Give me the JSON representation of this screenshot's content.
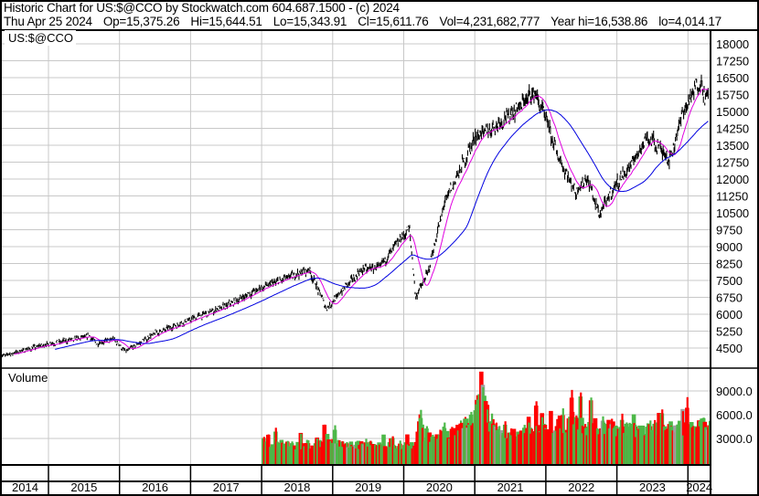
{
  "header": {
    "title": "Historic Chart for US:$@CCO by Stockwatch.com 604.687.1500 - (c) 2024",
    "date": "Thu Apr 25 2024",
    "open": "Op=15,375.26",
    "high": "Hi=15,644.51",
    "low": "Lo=15,343.91",
    "close": "Cl=15,611.76",
    "volume": "Vol=4,231,682,777",
    "year_high": "Year hi=16,538.86",
    "year_low": "lo=4,014.17"
  },
  "colors": {
    "price": "#000000",
    "ma_short": "#e000e0",
    "ma_long": "#0000e0",
    "vol_up": "#4cb848",
    "vol_down": "#ff0000",
    "vol_flat": "#a0a0a0",
    "grid": "#c8c8c8"
  },
  "chart_data": [
    {
      "type": "line",
      "title": "US:$@CCO",
      "y_ticks": [
        "18000",
        "17250",
        "16500",
        "15750",
        "15000",
        "14250",
        "13500",
        "12750",
        "12000",
        "11250",
        "10500",
        "9750",
        "9000",
        "8250",
        "7500",
        "6750",
        "6000",
        "5250",
        "4500"
      ],
      "ylim": [
        4125,
        18750
      ],
      "grid": true,
      "x_ticks": [
        "2014",
        "2015",
        "2016",
        "2017",
        "2018",
        "2019",
        "2020",
        "2021",
        "2022",
        "2023",
        "2024"
      ],
      "series": [
        {
          "points": [
            [
              "2014-05",
              4135
            ],
            [
              "2014-12",
              4620
            ],
            [
              "2015-08",
              5030
            ],
            [
              "2015-09",
              4700
            ],
            [
              "2015-12",
              4900
            ],
            [
              "2016-02",
              4340
            ],
            [
              "2016-07",
              5150
            ],
            [
              "2017-01",
              5760
            ],
            [
              "2017-07",
              6370
            ],
            [
              "2018-01",
              7180
            ],
            [
              "2018-09",
              7990
            ],
            [
              "2018-12",
              6240
            ],
            [
              "2019-03",
              7180
            ],
            [
              "2019-06",
              7990
            ],
            [
              "2019-09",
              8100
            ],
            [
              "2019-12",
              9200
            ],
            [
              "2020-02",
              9810
            ],
            [
              "2020-03",
              6770
            ],
            [
              "2020-05",
              7780
            ],
            [
              "2020-08",
              11030
            ],
            [
              "2020-11",
              12650
            ],
            [
              "2021-01",
              13860
            ],
            [
              "2021-04",
              14270
            ],
            [
              "2021-08",
              15080
            ],
            [
              "2021-11",
              15890
            ],
            [
              "2022-01",
              14680
            ],
            [
              "2022-03",
              13050
            ],
            [
              "2022-06",
              11430
            ],
            [
              "2022-08",
              12040
            ],
            [
              "2022-10",
              10420
            ],
            [
              "2023-01",
              11840
            ],
            [
              "2023-03",
              12450
            ],
            [
              "2023-06",
              13860
            ],
            [
              "2023-08",
              13460
            ],
            [
              "2023-10",
              12850
            ],
            [
              "2023-12",
              14880
            ],
            [
              "2024-02",
              15890
            ],
            [
              "2024-03",
              16380
            ],
            [
              "2024-04",
              15612
            ]
          ]
        }
      ],
      "moving_averages": [
        "short",
        "long"
      ]
    },
    {
      "type": "bar",
      "title": "Volume",
      "y_ticks": [
        "9000.0",
        "6000.0",
        "3000.0"
      ],
      "ylim": [
        0,
        12000
      ],
      "start": "2018-01",
      "monthly_values": [
        2000,
        2200,
        2100,
        2000,
        2100,
        1900,
        2000,
        2100,
        2000,
        2500,
        3000,
        2800,
        2300,
        2100,
        2100,
        2000,
        2200,
        2100,
        2100,
        2200,
        2000,
        2100,
        1900,
        1900,
        2000,
        2200,
        4500,
        3500,
        3200,
        3300,
        3500,
        3800,
        4500,
        4200,
        4500,
        5500,
        8000,
        7000,
        5000,
        4200,
        3800,
        3500,
        3600,
        3300,
        3600,
        4000,
        4300,
        4500,
        5000,
        4800,
        4800,
        4500,
        5000,
        4700,
        4400,
        4200,
        4500,
        4500,
        4300,
        4200,
        4300,
        4200,
        5000,
        4000,
        4100,
        4300,
        4200,
        3900,
        4200,
        4300,
        4200,
        4100,
        4800,
        4600,
        4500,
        4300
      ]
    }
  ]
}
